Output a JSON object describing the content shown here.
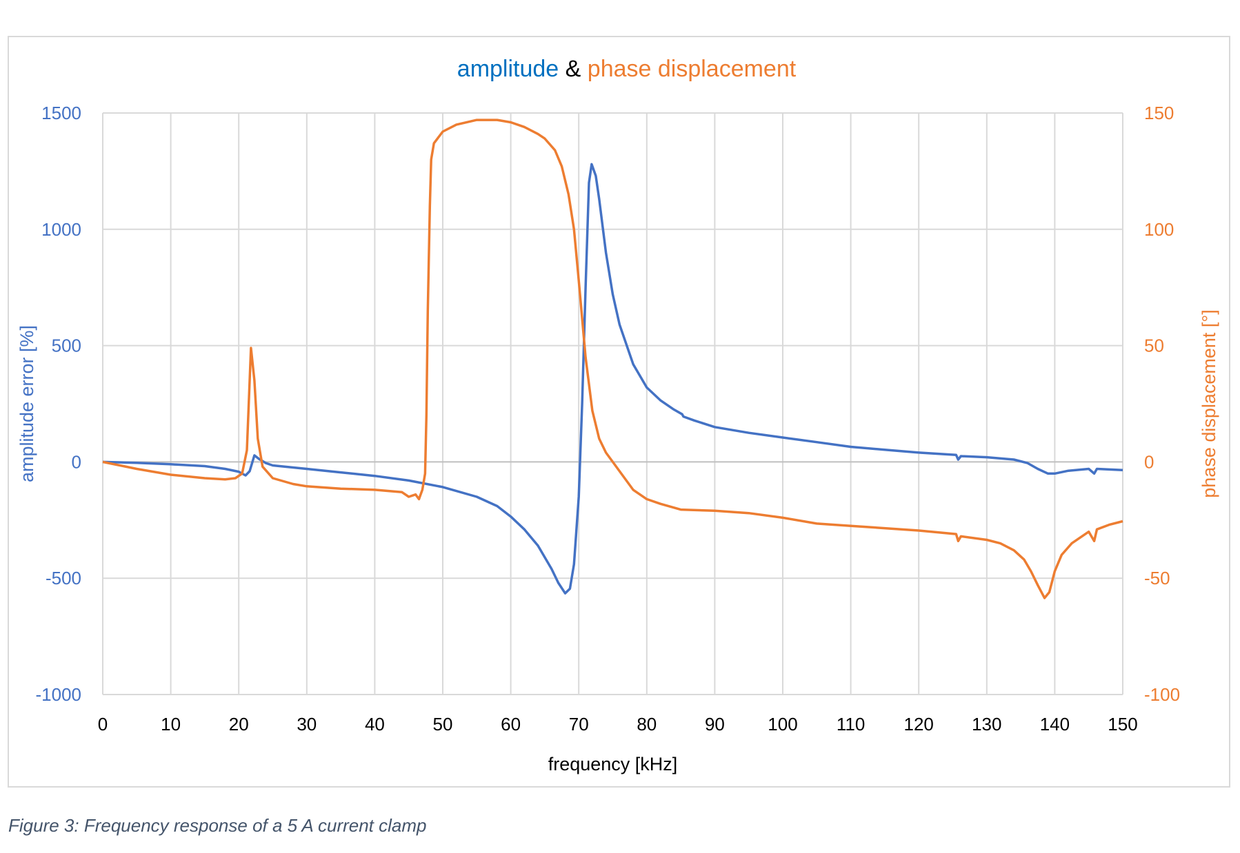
{
  "chart_data": {
    "type": "line",
    "title_parts": [
      {
        "text": "amplitude",
        "color": "#0070C0"
      },
      {
        "text": " & ",
        "color": "#000000"
      },
      {
        "text": "phase displacement",
        "color": "#ED7D31"
      }
    ],
    "xlabel": "frequency [kHz]",
    "ylabel_left": "amplitude error [%]",
    "ylabel_right": "phase displacement [°]",
    "xlim": [
      0,
      150
    ],
    "ylim_left": [
      -1000,
      1500
    ],
    "ylim_right": [
      -100,
      150
    ],
    "x_ticks": [
      0,
      10,
      20,
      30,
      40,
      50,
      60,
      70,
      80,
      90,
      100,
      110,
      120,
      130,
      140,
      150
    ],
    "y_ticks_left": [
      -1000,
      -500,
      0,
      500,
      1000,
      1500
    ],
    "y_ticks_right": [
      -100,
      -50,
      0,
      50,
      100,
      150
    ],
    "grid": true,
    "series": [
      {
        "axis": "left",
        "color": "#4472C4",
        "points": [
          [
            0,
            0
          ],
          [
            5,
            -4
          ],
          [
            10,
            -10
          ],
          [
            15,
            -18
          ],
          [
            18,
            -30
          ],
          [
            20,
            -42
          ],
          [
            21,
            -58
          ],
          [
            21.6,
            -40
          ],
          [
            22.3,
            28
          ],
          [
            23,
            12
          ],
          [
            24,
            -5
          ],
          [
            25,
            -15
          ],
          [
            30,
            -30
          ],
          [
            35,
            -45
          ],
          [
            40,
            -60
          ],
          [
            45,
            -80
          ],
          [
            50,
            -108
          ],
          [
            55,
            -150
          ],
          [
            58,
            -190
          ],
          [
            60,
            -235
          ],
          [
            62,
            -290
          ],
          [
            64,
            -360
          ],
          [
            66,
            -460
          ],
          [
            67,
            -520
          ],
          [
            68,
            -565
          ],
          [
            68.7,
            -545
          ],
          [
            69.3,
            -440
          ],
          [
            70,
            -150
          ],
          [
            70.5,
            250
          ],
          [
            71,
            750
          ],
          [
            71.5,
            1200
          ],
          [
            71.9,
            1280
          ],
          [
            72.5,
            1230
          ],
          [
            73,
            1130
          ],
          [
            74,
            900
          ],
          [
            75,
            720
          ],
          [
            76,
            590
          ],
          [
            78,
            420
          ],
          [
            80,
            320
          ],
          [
            82,
            265
          ],
          [
            84,
            225
          ],
          [
            85.2,
            205
          ],
          [
            85.4,
            195
          ],
          [
            87,
            178
          ],
          [
            90,
            150
          ],
          [
            95,
            125
          ],
          [
            100,
            105
          ],
          [
            105,
            85
          ],
          [
            110,
            65
          ],
          [
            115,
            52
          ],
          [
            120,
            40
          ],
          [
            125.5,
            30
          ],
          [
            125.8,
            10
          ],
          [
            126.2,
            25
          ],
          [
            130,
            20
          ],
          [
            134,
            10
          ],
          [
            136,
            -5
          ],
          [
            137.5,
            -30
          ],
          [
            139,
            -50
          ],
          [
            140,
            -50
          ],
          [
            142,
            -38
          ],
          [
            145,
            -30
          ],
          [
            145.8,
            -50
          ],
          [
            146.2,
            -30
          ],
          [
            150,
            -35
          ]
        ]
      },
      {
        "axis": "right",
        "color": "#ED7D31",
        "points": [
          [
            0,
            0
          ],
          [
            5,
            -3
          ],
          [
            10,
            -5.5
          ],
          [
            15,
            -7
          ],
          [
            18,
            -7.5
          ],
          [
            19.5,
            -7
          ],
          [
            20.5,
            -5
          ],
          [
            21.2,
            5
          ],
          [
            21.8,
            49
          ],
          [
            22.3,
            35
          ],
          [
            22.8,
            10
          ],
          [
            23.5,
            -2
          ],
          [
            25,
            -7
          ],
          [
            28,
            -9.5
          ],
          [
            30,
            -10.5
          ],
          [
            35,
            -11.5
          ],
          [
            40,
            -12
          ],
          [
            44,
            -13
          ],
          [
            45,
            -15
          ],
          [
            46,
            -14
          ],
          [
            46.5,
            -16
          ],
          [
            47,
            -12
          ],
          [
            47.4,
            -5
          ],
          [
            47.6,
            20
          ],
          [
            47.8,
            65
          ],
          [
            48.1,
            110
          ],
          [
            48.3,
            130
          ],
          [
            48.7,
            137
          ],
          [
            50,
            142
          ],
          [
            52,
            145
          ],
          [
            55,
            147
          ],
          [
            58,
            147
          ],
          [
            60,
            146
          ],
          [
            62,
            144
          ],
          [
            64,
            141
          ],
          [
            65,
            139
          ],
          [
            66.5,
            134
          ],
          [
            67.5,
            127
          ],
          [
            68.5,
            115
          ],
          [
            69.3,
            100
          ],
          [
            70,
            78
          ],
          [
            71,
            45
          ],
          [
            72,
            22
          ],
          [
            73,
            10
          ],
          [
            74,
            4
          ],
          [
            75,
            0
          ],
          [
            77,
            -8
          ],
          [
            78,
            -12
          ],
          [
            80,
            -16
          ],
          [
            82,
            -18
          ],
          [
            85,
            -20.5
          ],
          [
            90,
            -21
          ],
          [
            95,
            -22
          ],
          [
            100,
            -24
          ],
          [
            105,
            -26.5
          ],
          [
            110,
            -27.5
          ],
          [
            115,
            -28.5
          ],
          [
            120,
            -29.5
          ],
          [
            125.5,
            -31
          ],
          [
            125.8,
            -34
          ],
          [
            126.2,
            -32
          ],
          [
            130,
            -33.5
          ],
          [
            132,
            -35
          ],
          [
            134,
            -38
          ],
          [
            135.5,
            -42
          ],
          [
            136.5,
            -47
          ],
          [
            137.5,
            -53
          ],
          [
            138.5,
            -58.5
          ],
          [
            139.2,
            -56
          ],
          [
            140,
            -47
          ],
          [
            141,
            -40
          ],
          [
            142.5,
            -35
          ],
          [
            145,
            -30
          ],
          [
            145.8,
            -34
          ],
          [
            146.2,
            -29
          ],
          [
            148,
            -27
          ],
          [
            150,
            -25.5
          ]
        ]
      }
    ]
  },
  "caption": "Figure 3: Frequency response of a 5 A current clamp"
}
